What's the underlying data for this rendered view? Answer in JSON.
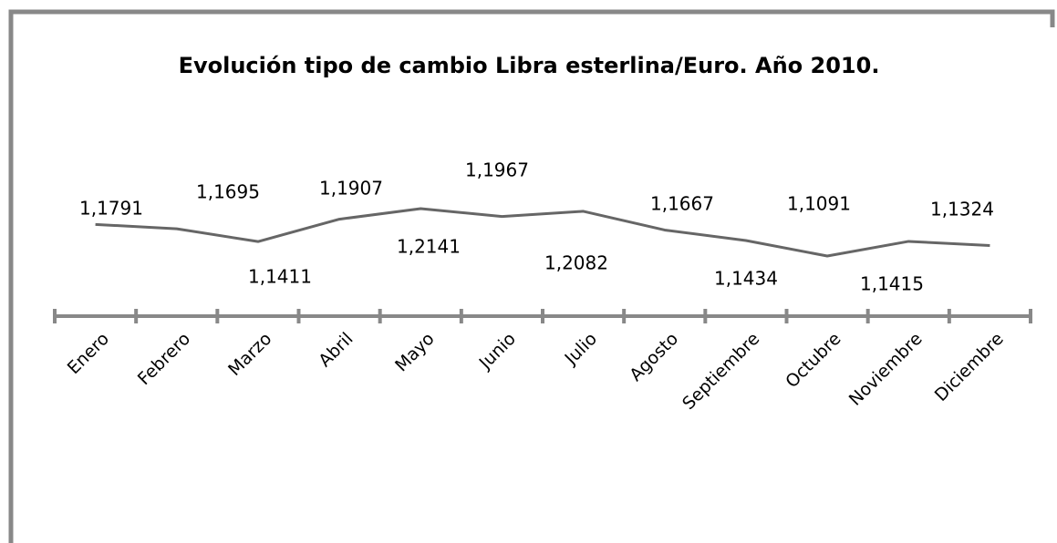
{
  "chart_data": {
    "type": "line",
    "title": "Evolución tipo de cambio Libra esterlina/Euro. Año 2010.",
    "categories": [
      "Enero",
      "Febrero",
      "Marzo",
      "Abril",
      "Mayo",
      "Junio",
      "Julio",
      "Agosto",
      "Septiembre",
      "Octubre",
      "Noviembre",
      "Diciembre"
    ],
    "values": [
      1.1791,
      1.1695,
      1.1411,
      1.1907,
      1.2141,
      1.1967,
      1.2082,
      1.1667,
      1.1434,
      1.1091,
      1.1415,
      1.1324
    ],
    "value_labels": [
      "1,1791",
      "1,1695",
      "1,1411",
      "1,1907",
      "1,2141",
      "1,1967",
      "1,2082",
      "1,1667",
      "1,1434",
      "1,1091",
      "1,1415",
      "1,1324"
    ],
    "color": "#666666"
  }
}
